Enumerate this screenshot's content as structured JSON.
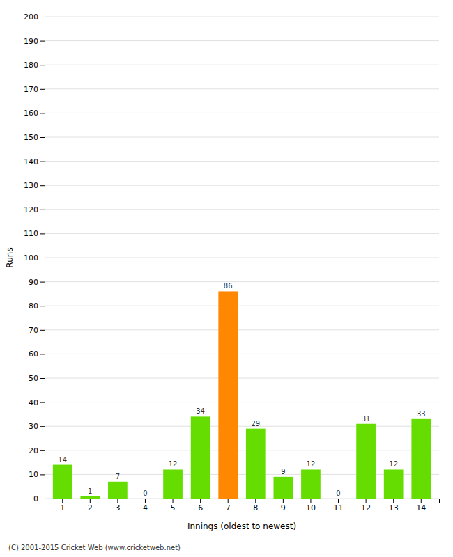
{
  "chart_data": {
    "type": "bar",
    "categories": [
      1,
      2,
      3,
      4,
      5,
      6,
      7,
      8,
      9,
      10,
      11,
      12,
      13,
      14
    ],
    "values": [
      14,
      1,
      7,
      0,
      12,
      34,
      86,
      29,
      9,
      12,
      0,
      31,
      12,
      33
    ],
    "colors": [
      "#66dd00",
      "#66dd00",
      "#66dd00",
      "#66dd00",
      "#66dd00",
      "#66dd00",
      "#ff8800",
      "#66dd00",
      "#66dd00",
      "#66dd00",
      "#66dd00",
      "#66dd00",
      "#66dd00",
      "#66dd00"
    ],
    "xlabel": "Innings (oldest to newest)",
    "ylabel": "Runs",
    "ylim": [
      0,
      200
    ],
    "yticks": [
      0,
      10,
      20,
      30,
      40,
      50,
      60,
      70,
      80,
      90,
      100,
      110,
      120,
      130,
      140,
      150,
      160,
      170,
      180,
      190,
      200
    ],
    "grid": true,
    "data_labels": true,
    "annotations": [
      "(C) 2001-2015 Cricket Web (www.cricketweb.net)"
    ]
  }
}
